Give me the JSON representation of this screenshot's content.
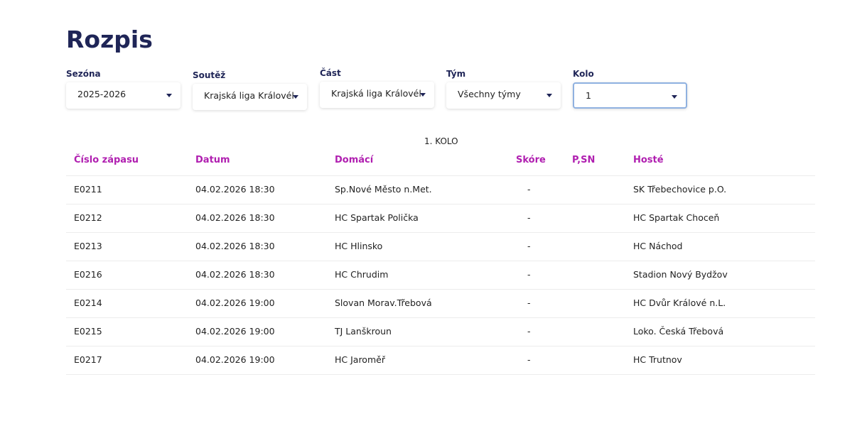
{
  "header": {
    "title": "Rozpis"
  },
  "filters": [
    {
      "label": "Sezóna",
      "value": "2025-2026"
    },
    {
      "label": "Soutěž",
      "value": "Krajská liga Královél"
    },
    {
      "label": "Část",
      "value": "Krajská liga Královél"
    },
    {
      "label": "Tým",
      "value": "Všechny týmy"
    },
    {
      "label": "Kolo",
      "value": "1"
    }
  ],
  "table": {
    "caption": "1. KOLO",
    "columns": [
      "Číslo zápasu",
      "Datum",
      "Domácí",
      "Skóre",
      "P,SN",
      "Hosté"
    ],
    "rows": [
      {
        "number": "E0211",
        "date": "04.02.2026 18:30",
        "home": "Sp.Nové Město n.Met.",
        "score": "-",
        "guests": "SK Třebechovice p.O."
      },
      {
        "number": "E0212",
        "date": "04.02.2026 18:30",
        "home": "HC Spartak Polička",
        "score": "-",
        "guests": "HC Spartak Choceň"
      },
      {
        "number": "E0213",
        "date": "04.02.2026 18:30",
        "home": "HC Hlinsko",
        "score": "-",
        "guests": "HC Náchod"
      },
      {
        "number": "E0216",
        "date": "04.02.2026 18:30",
        "home": "HC Chrudim",
        "score": "-",
        "guests": "Stadion Nový Bydžov"
      },
      {
        "number": "E0214",
        "date": "04.02.2026 19:00",
        "home": "Slovan Morav.Třebová",
        "score": "-",
        "guests": "HC Dvůr Králové n.L."
      },
      {
        "number": "E0215",
        "date": "04.02.2026 19:00",
        "home": "TJ Lanškroun",
        "score": "-",
        "guests": "Loko. Česká Třebová"
      },
      {
        "number": "E0217",
        "date": "04.02.2026 19:00",
        "home": "HC Jaroměř",
        "score": "-",
        "guests": "HC Trutnov"
      }
    ]
  }
}
